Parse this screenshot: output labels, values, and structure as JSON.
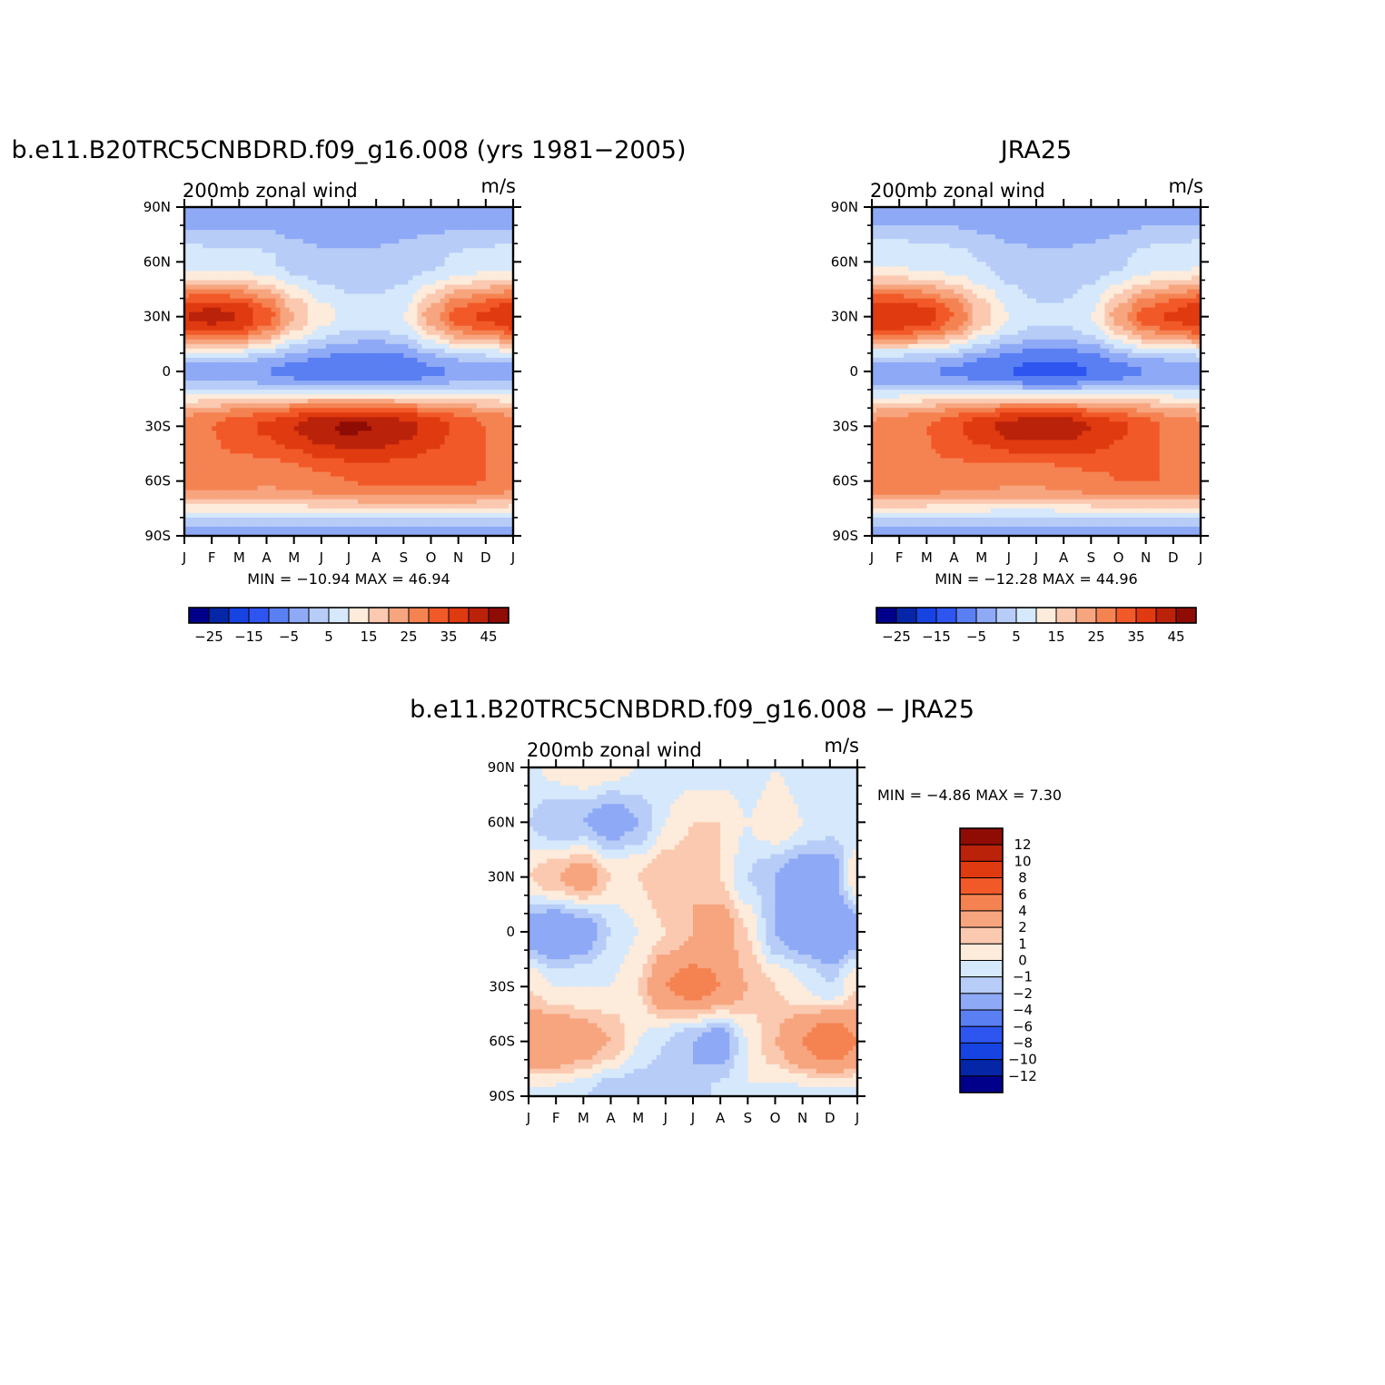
{
  "colors": {
    "wind_levels": [
      "#00008b",
      "#0526a6",
      "#1743e3",
      "#2e55ef",
      "#5a7ff3",
      "#8ea9f5",
      "#b7ccf7",
      "#d6e8fb",
      "#fdebdb",
      "#fac9b0",
      "#f7a57f",
      "#f58352",
      "#f25928",
      "#e03a10",
      "#bb220a",
      "#8f0c05"
    ],
    "diff_levels": [
      "#00008b",
      "#0526a6",
      "#1743e3",
      "#2e55ef",
      "#5a7ff3",
      "#8ea9f5",
      "#b7ccf7",
      "#d6e8fb",
      "#fdebdb",
      "#fac9b0",
      "#f7a57f",
      "#f58352",
      "#f25928",
      "#e03a10",
      "#bb220a",
      "#8f0c05"
    ]
  },
  "panels": [
    {
      "id": "model",
      "title": "b.e11.B20TRC5CNBDRD.f09_g16.008 (yrs 1981−2005)",
      "left_label": "200mb zonal wind",
      "right_label": "m/s",
      "y_ticks": [
        "90N",
        "60N",
        "30N",
        "0",
        "30S",
        "60S",
        "90S"
      ],
      "x_ticks": [
        "J",
        "F",
        "M",
        "A",
        "M",
        "J",
        "J",
        "A",
        "S",
        "O",
        "N",
        "D",
        "J"
      ],
      "stats": "MIN = −10.94  MAX =   46.94",
      "colorbar_labels": [
        "−25",
        "−15",
        "−5",
        "5",
        "15",
        "25",
        "35",
        "45"
      ]
    },
    {
      "id": "obs",
      "title": "JRA25",
      "left_label": "200mb zonal wind",
      "right_label": "m/s",
      "y_ticks": [
        "90N",
        "60N",
        "30N",
        "0",
        "30S",
        "60S",
        "90S"
      ],
      "x_ticks": [
        "J",
        "F",
        "M",
        "A",
        "M",
        "J",
        "J",
        "A",
        "S",
        "O",
        "N",
        "D",
        "J"
      ],
      "stats": "MIN = −12.28  MAX =   44.96",
      "colorbar_labels": [
        "−25",
        "−15",
        "−5",
        "5",
        "15",
        "25",
        "35",
        "45"
      ]
    },
    {
      "id": "diff",
      "title": "b.e11.B20TRC5CNBDRD.f09_g16.008 − JRA25",
      "left_label": "200mb zonal wind",
      "right_label": "m/s",
      "y_ticks": [
        "90N",
        "60N",
        "30N",
        "0",
        "30S",
        "60S",
        "90S"
      ],
      "x_ticks": [
        "J",
        "F",
        "M",
        "A",
        "M",
        "J",
        "J",
        "A",
        "S",
        "O",
        "N",
        "D",
        "J"
      ],
      "stats": "MIN =   −4.86  MAX =    7.30",
      "colorbar_labels": [
        "12",
        "10",
        "8",
        "6",
        "4",
        "2",
        "1",
        "0",
        "−1",
        "−2",
        "−4",
        "−6",
        "−8",
        "−10",
        "−12"
      ]
    }
  ],
  "chart_data": [
    {
      "type": "heatmap",
      "title": "b.e11.B20TRC5CNBDRD.f09_g16.008 (yrs 1981−2005)",
      "subtitle": "200mb zonal wind",
      "units": "m/s",
      "x": [
        "J",
        "F",
        "M",
        "A",
        "M",
        "J",
        "J",
        "A",
        "S",
        "O",
        "N",
        "D",
        "J"
      ],
      "y": [
        "90N",
        "60N",
        "30N",
        "0",
        "30S",
        "60S",
        "90S"
      ],
      "levels": [
        -30,
        -25,
        -20,
        -15,
        -10,
        -5,
        0,
        5,
        10,
        15,
        20,
        25,
        30,
        35,
        40,
        45
      ],
      "z": [
        [
          -4,
          -4,
          -4,
          -4,
          -5,
          -5,
          -4,
          -4,
          -4,
          -4,
          -4,
          -4,
          -4
        ],
        [
          8,
          7,
          7,
          6,
          3,
          1,
          1,
          1,
          2,
          4,
          6,
          7,
          8
        ],
        [
          40,
          42,
          40,
          32,
          20,
          12,
          8,
          7,
          10,
          22,
          32,
          36,
          40
        ],
        [
          -3,
          -3,
          -3,
          -5,
          -7,
          -9,
          -10,
          -10,
          -9,
          -6,
          -4,
          -3,
          -3
        ],
        [
          28,
          30,
          33,
          36,
          40,
          44,
          46,
          45,
          42,
          38,
          34,
          30,
          28
        ],
        [
          28,
          28,
          27,
          26,
          27,
          29,
          30,
          31,
          31,
          31,
          31,
          30,
          28
        ],
        [
          -2,
          -2,
          -2,
          -2,
          -2,
          -2,
          -2,
          -2,
          -2,
          -2,
          -3,
          -2,
          -2
        ]
      ],
      "min": -10.94,
      "max": 46.94
    },
    {
      "type": "heatmap",
      "title": "JRA25",
      "subtitle": "200mb zonal wind",
      "units": "m/s",
      "x": [
        "J",
        "F",
        "M",
        "A",
        "M",
        "J",
        "J",
        "A",
        "S",
        "O",
        "N",
        "D",
        "J"
      ],
      "y": [
        "90N",
        "60N",
        "30N",
        "0",
        "30S",
        "60S",
        "90S"
      ],
      "levels": [
        -30,
        -25,
        -20,
        -15,
        -10,
        -5,
        0,
        5,
        10,
        15,
        20,
        25,
        30,
        35,
        40,
        45
      ],
      "z": [
        [
          -3,
          -3,
          -3,
          -3,
          -4,
          -5,
          -5,
          -5,
          -5,
          -4,
          -3,
          -3,
          -3
        ],
        [
          9,
          9,
          8,
          7,
          5,
          2,
          1,
          1,
          2,
          4,
          7,
          8,
          9
        ],
        [
          40,
          40,
          38,
          30,
          18,
          10,
          6,
          6,
          10,
          22,
          32,
          36,
          40
        ],
        [
          -4,
          -4,
          -4,
          -6,
          -8,
          -10,
          -12,
          -12,
          -10,
          -7,
          -5,
          -4,
          -4
        ],
        [
          26,
          28,
          30,
          34,
          38,
          42,
          43,
          43,
          40,
          36,
          32,
          28,
          26
        ],
        [
          30,
          30,
          29,
          28,
          27,
          26,
          26,
          27,
          29,
          30,
          30,
          30,
          30
        ],
        [
          -3,
          -3,
          -3,
          -3,
          -3,
          -3,
          -3,
          -3,
          -3,
          -3,
          -3,
          -3,
          -3
        ]
      ],
      "min": -12.28,
      "max": 44.96
    },
    {
      "type": "heatmap",
      "title": "b.e11.B20TRC5CNBDRD.f09_g16.008 − JRA25",
      "subtitle": "200mb zonal wind",
      "units": "m/s",
      "x": [
        "J",
        "F",
        "M",
        "A",
        "M",
        "J",
        "J",
        "A",
        "S",
        "O",
        "N",
        "D",
        "J"
      ],
      "y": [
        "90N",
        "60N",
        "30N",
        "0",
        "30S",
        "60S",
        "90S"
      ],
      "levels": [
        -14,
        -12,
        -10,
        -8,
        -6,
        -4,
        -2,
        -1,
        0,
        1,
        2,
        4,
        6,
        8,
        10,
        12
      ],
      "z": [
        [
          -0.5,
          0.5,
          1,
          0.5,
          0,
          -0.5,
          -0.5,
          -0.5,
          -1,
          0,
          -0.5,
          -0.5,
          -0.5
        ],
        [
          -1,
          -2,
          -2,
          -3,
          -2,
          0,
          1,
          1,
          0,
          1,
          0,
          -0.5,
          -1
        ],
        [
          1,
          2,
          3,
          1,
          1,
          2,
          2,
          1,
          -1,
          -2,
          -3,
          -3,
          1
        ],
        [
          -3,
          -4,
          -3,
          -1,
          0,
          1,
          2,
          3,
          1,
          -2,
          -3,
          -4,
          -3
        ],
        [
          1,
          0,
          0,
          0,
          1,
          4,
          5,
          4,
          2,
          1,
          0,
          -1,
          1
        ],
        [
          4,
          4,
          3,
          2,
          0,
          -1,
          -2,
          -3,
          0,
          2,
          4,
          6,
          4
        ],
        [
          -0.5,
          -0.5,
          -1,
          -2,
          -2,
          -2,
          -2,
          -0.5,
          0,
          -0.5,
          -0.5,
          -0.5,
          -0.5
        ]
      ],
      "min": -4.86,
      "max": 7.3
    }
  ]
}
